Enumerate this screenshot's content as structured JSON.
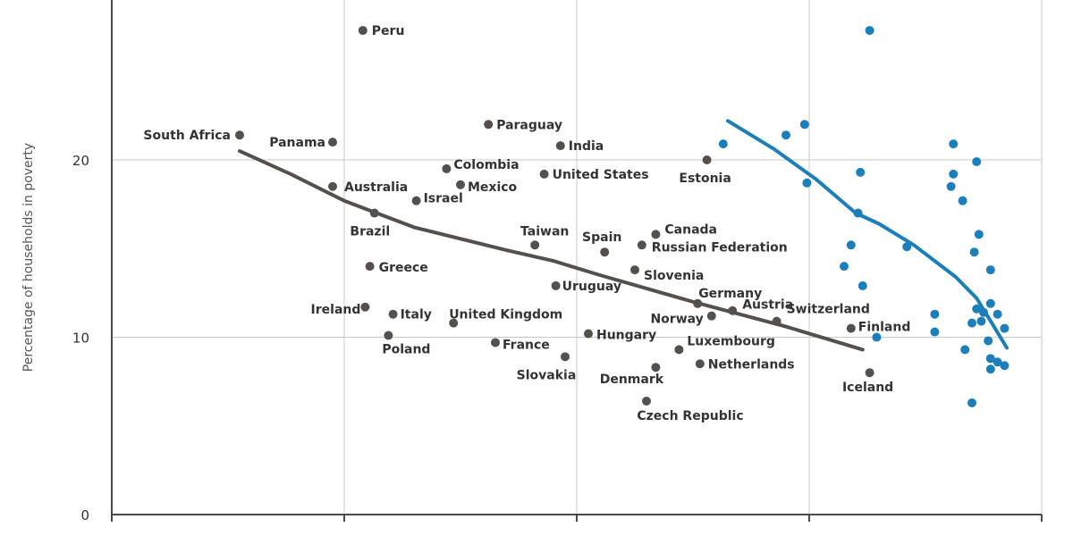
{
  "chart_data": {
    "type": "scatter",
    "title": "",
    "ylabel": "Percentage of households in poverty",
    "xlabel": "",
    "ylim": [
      0,
      30
    ],
    "xlim": [
      0,
      4
    ],
    "yticks": [
      0,
      10,
      20
    ],
    "xticks": [
      0,
      1,
      2,
      3,
      4
    ],
    "grid": true,
    "colors": {
      "countries": "#55504c",
      "countries_trend": "#55504c",
      "regions": "#1a7fba",
      "regions_trend": "#1a7fba"
    },
    "series": [
      {
        "name": "",
        "kind": "points",
        "color": "#55504c",
        "points": [
          {
            "label": "Peru",
            "x": 1.08,
            "y": 27.3
          },
          {
            "label": "South Africa",
            "x": 0.55,
            "y": 21.4
          },
          {
            "label": "Panama",
            "x": 0.95,
            "y": 21.0
          },
          {
            "label": "Paraguay",
            "x": 1.62,
            "y": 22.0
          },
          {
            "label": "India",
            "x": 1.93,
            "y": 20.8
          },
          {
            "label": "Estonia",
            "x": 2.56,
            "y": 20.0
          },
          {
            "label": "Colombia",
            "x": 1.44,
            "y": 19.5
          },
          {
            "label": "United States",
            "x": 1.86,
            "y": 19.2
          },
          {
            "label": "Australia",
            "x": 0.95,
            "y": 18.5
          },
          {
            "label": "Mexico",
            "x": 1.5,
            "y": 18.6
          },
          {
            "label": "Israel",
            "x": 1.31,
            "y": 17.7
          },
          {
            "label": "Brazil",
            "x": 1.13,
            "y": 17.0
          },
          {
            "label": "Taiwan",
            "x": 1.82,
            "y": 15.2
          },
          {
            "label": "Spain",
            "x": 2.12,
            "y": 14.8
          },
          {
            "label": "Canada",
            "x": 2.34,
            "y": 15.8
          },
          {
            "label": "Russian Federation",
            "x": 2.28,
            "y": 15.2
          },
          {
            "label": "Greece",
            "x": 1.11,
            "y": 14.0
          },
          {
            "label": "Slovenia",
            "x": 2.25,
            "y": 13.8
          },
          {
            "label": "Uruguay",
            "x": 1.91,
            "y": 12.9
          },
          {
            "label": "Germany",
            "x": 2.52,
            "y": 11.9
          },
          {
            "label": "Ireland",
            "x": 1.09,
            "y": 11.7
          },
          {
            "label": "Italy",
            "x": 1.21,
            "y": 11.3
          },
          {
            "label": "United Kingdom",
            "x": 1.47,
            "y": 10.8
          },
          {
            "label": "Austria",
            "x": 2.67,
            "y": 11.5
          },
          {
            "label": "Norway",
            "x": 2.58,
            "y": 11.2
          },
          {
            "label": "Switzerland",
            "x": 2.86,
            "y": 10.9
          },
          {
            "label": "Finland",
            "x": 3.18,
            "y": 10.5
          },
          {
            "label": "Poland",
            "x": 1.19,
            "y": 10.1
          },
          {
            "label": "Hungary",
            "x": 2.05,
            "y": 10.2
          },
          {
            "label": "France",
            "x": 1.65,
            "y": 9.7
          },
          {
            "label": "Luxembourg",
            "x": 2.44,
            "y": 9.3
          },
          {
            "label": "Slovakia",
            "x": 1.95,
            "y": 8.9
          },
          {
            "label": "Netherlands",
            "x": 2.53,
            "y": 8.5
          },
          {
            "label": "Denmark",
            "x": 2.34,
            "y": 8.3
          },
          {
            "label": "Iceland",
            "x": 3.26,
            "y": 8.0
          },
          {
            "label": "Czech Republic",
            "x": 2.3,
            "y": 6.4
          }
        ]
      },
      {
        "name": "",
        "kind": "trend",
        "color": "#55504c",
        "points": [
          {
            "x": 0.55,
            "y": 20.5
          },
          {
            "x": 0.77,
            "y": 19.2
          },
          {
            "x": 1.0,
            "y": 17.7
          },
          {
            "x": 1.3,
            "y": 16.2
          },
          {
            "x": 1.7,
            "y": 14.9
          },
          {
            "x": 1.9,
            "y": 14.3
          },
          {
            "x": 2.1,
            "y": 13.5
          },
          {
            "x": 2.5,
            "y": 12.0
          },
          {
            "x": 2.9,
            "y": 10.6
          },
          {
            "x": 3.23,
            "y": 9.3
          }
        ]
      },
      {
        "name": "",
        "kind": "points",
        "color": "#1a7fba",
        "points": [
          {
            "x": 3.26,
            "y": 27.3
          },
          {
            "x": 2.63,
            "y": 20.9
          },
          {
            "x": 2.9,
            "y": 21.4
          },
          {
            "x": 2.98,
            "y": 22.0
          },
          {
            "x": 3.22,
            "y": 19.3
          },
          {
            "x": 2.99,
            "y": 18.7
          },
          {
            "x": 3.21,
            "y": 17.0
          },
          {
            "x": 3.18,
            "y": 15.2
          },
          {
            "x": 3.15,
            "y": 14.0
          },
          {
            "x": 3.23,
            "y": 12.9
          },
          {
            "x": 3.42,
            "y": 15.1
          },
          {
            "x": 3.29,
            "y": 10.0
          },
          {
            "x": 3.54,
            "y": 11.3
          },
          {
            "x": 3.54,
            "y": 10.3
          },
          {
            "x": 3.62,
            "y": 20.9
          },
          {
            "x": 3.62,
            "y": 19.2
          },
          {
            "x": 3.61,
            "y": 18.5
          },
          {
            "x": 3.66,
            "y": 17.7
          },
          {
            "x": 3.72,
            "y": 19.9
          },
          {
            "x": 3.73,
            "y": 15.8
          },
          {
            "x": 3.71,
            "y": 14.8
          },
          {
            "x": 3.78,
            "y": 13.8
          },
          {
            "x": 3.67,
            "y": 9.3
          },
          {
            "x": 3.7,
            "y": 10.8
          },
          {
            "x": 3.72,
            "y": 11.6
          },
          {
            "x": 3.74,
            "y": 10.9
          },
          {
            "x": 3.75,
            "y": 11.4
          },
          {
            "x": 3.78,
            "y": 11.9
          },
          {
            "x": 3.81,
            "y": 11.3
          },
          {
            "x": 3.84,
            "y": 10.5
          },
          {
            "x": 3.77,
            "y": 9.8
          },
          {
            "x": 3.78,
            "y": 8.8
          },
          {
            "x": 3.78,
            "y": 8.2
          },
          {
            "x": 3.81,
            "y": 8.6
          },
          {
            "x": 3.84,
            "y": 8.4
          },
          {
            "x": 3.7,
            "y": 6.3
          }
        ]
      },
      {
        "name": "",
        "kind": "trend",
        "color": "#1a7fba",
        "points": [
          {
            "x": 2.65,
            "y": 22.2
          },
          {
            "x": 2.85,
            "y": 20.6
          },
          {
            "x": 3.03,
            "y": 18.9
          },
          {
            "x": 3.2,
            "y": 17.0
          },
          {
            "x": 3.3,
            "y": 16.4
          },
          {
            "x": 3.45,
            "y": 15.2
          },
          {
            "x": 3.55,
            "y": 14.2
          },
          {
            "x": 3.63,
            "y": 13.4
          },
          {
            "x": 3.72,
            "y": 12.2
          },
          {
            "x": 3.79,
            "y": 10.7
          },
          {
            "x": 3.85,
            "y": 9.4
          }
        ]
      }
    ]
  }
}
